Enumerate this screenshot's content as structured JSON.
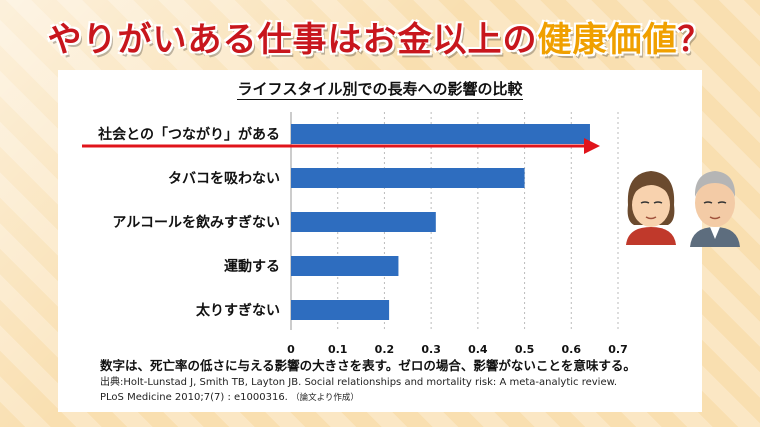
{
  "headline": {
    "part1": "やりがいある仕事",
    "part2": "はお金以上の",
    "part3": "健康価値",
    "part4": "？"
  },
  "note": "数字は、死亡率の低さに与える影響の大きさを表す。ゼロの場合、影響がないことを意味する。",
  "source": {
    "line1": "出典:Holt-Lunstad J, Smith TB, Layton JB. Social relationships  and  mortality  risk: A meta-analytic review.",
    "line2": "PLoS Medicine 2010;7(7) : e1000316.",
    "line2_note": "（論文より作成）"
  },
  "colors": {
    "bar": "#2e6dbf",
    "arrow": "#e0141b",
    "title_red": "#c8161d",
    "title_orange": "#f0a000"
  },
  "chart_data": {
    "type": "bar",
    "orientation": "horizontal",
    "title": "ライフスタイル別での長寿への影響の比較",
    "categories": [
      "社会との「つながり」がある",
      "タバコを吸わない",
      "アルコールを飲みすぎない",
      "運動する",
      "太りすぎない"
    ],
    "values": [
      0.64,
      0.5,
      0.31,
      0.23,
      0.21
    ],
    "xlim": [
      0,
      0.7
    ],
    "xticks": [
      "0",
      "0.1",
      "0.2",
      "0.3",
      "0.4",
      "0.5",
      "0.6",
      "0.7"
    ],
    "grid": "dashed vertical",
    "highlight_arrow_on": "社会との「つながり」がある"
  }
}
